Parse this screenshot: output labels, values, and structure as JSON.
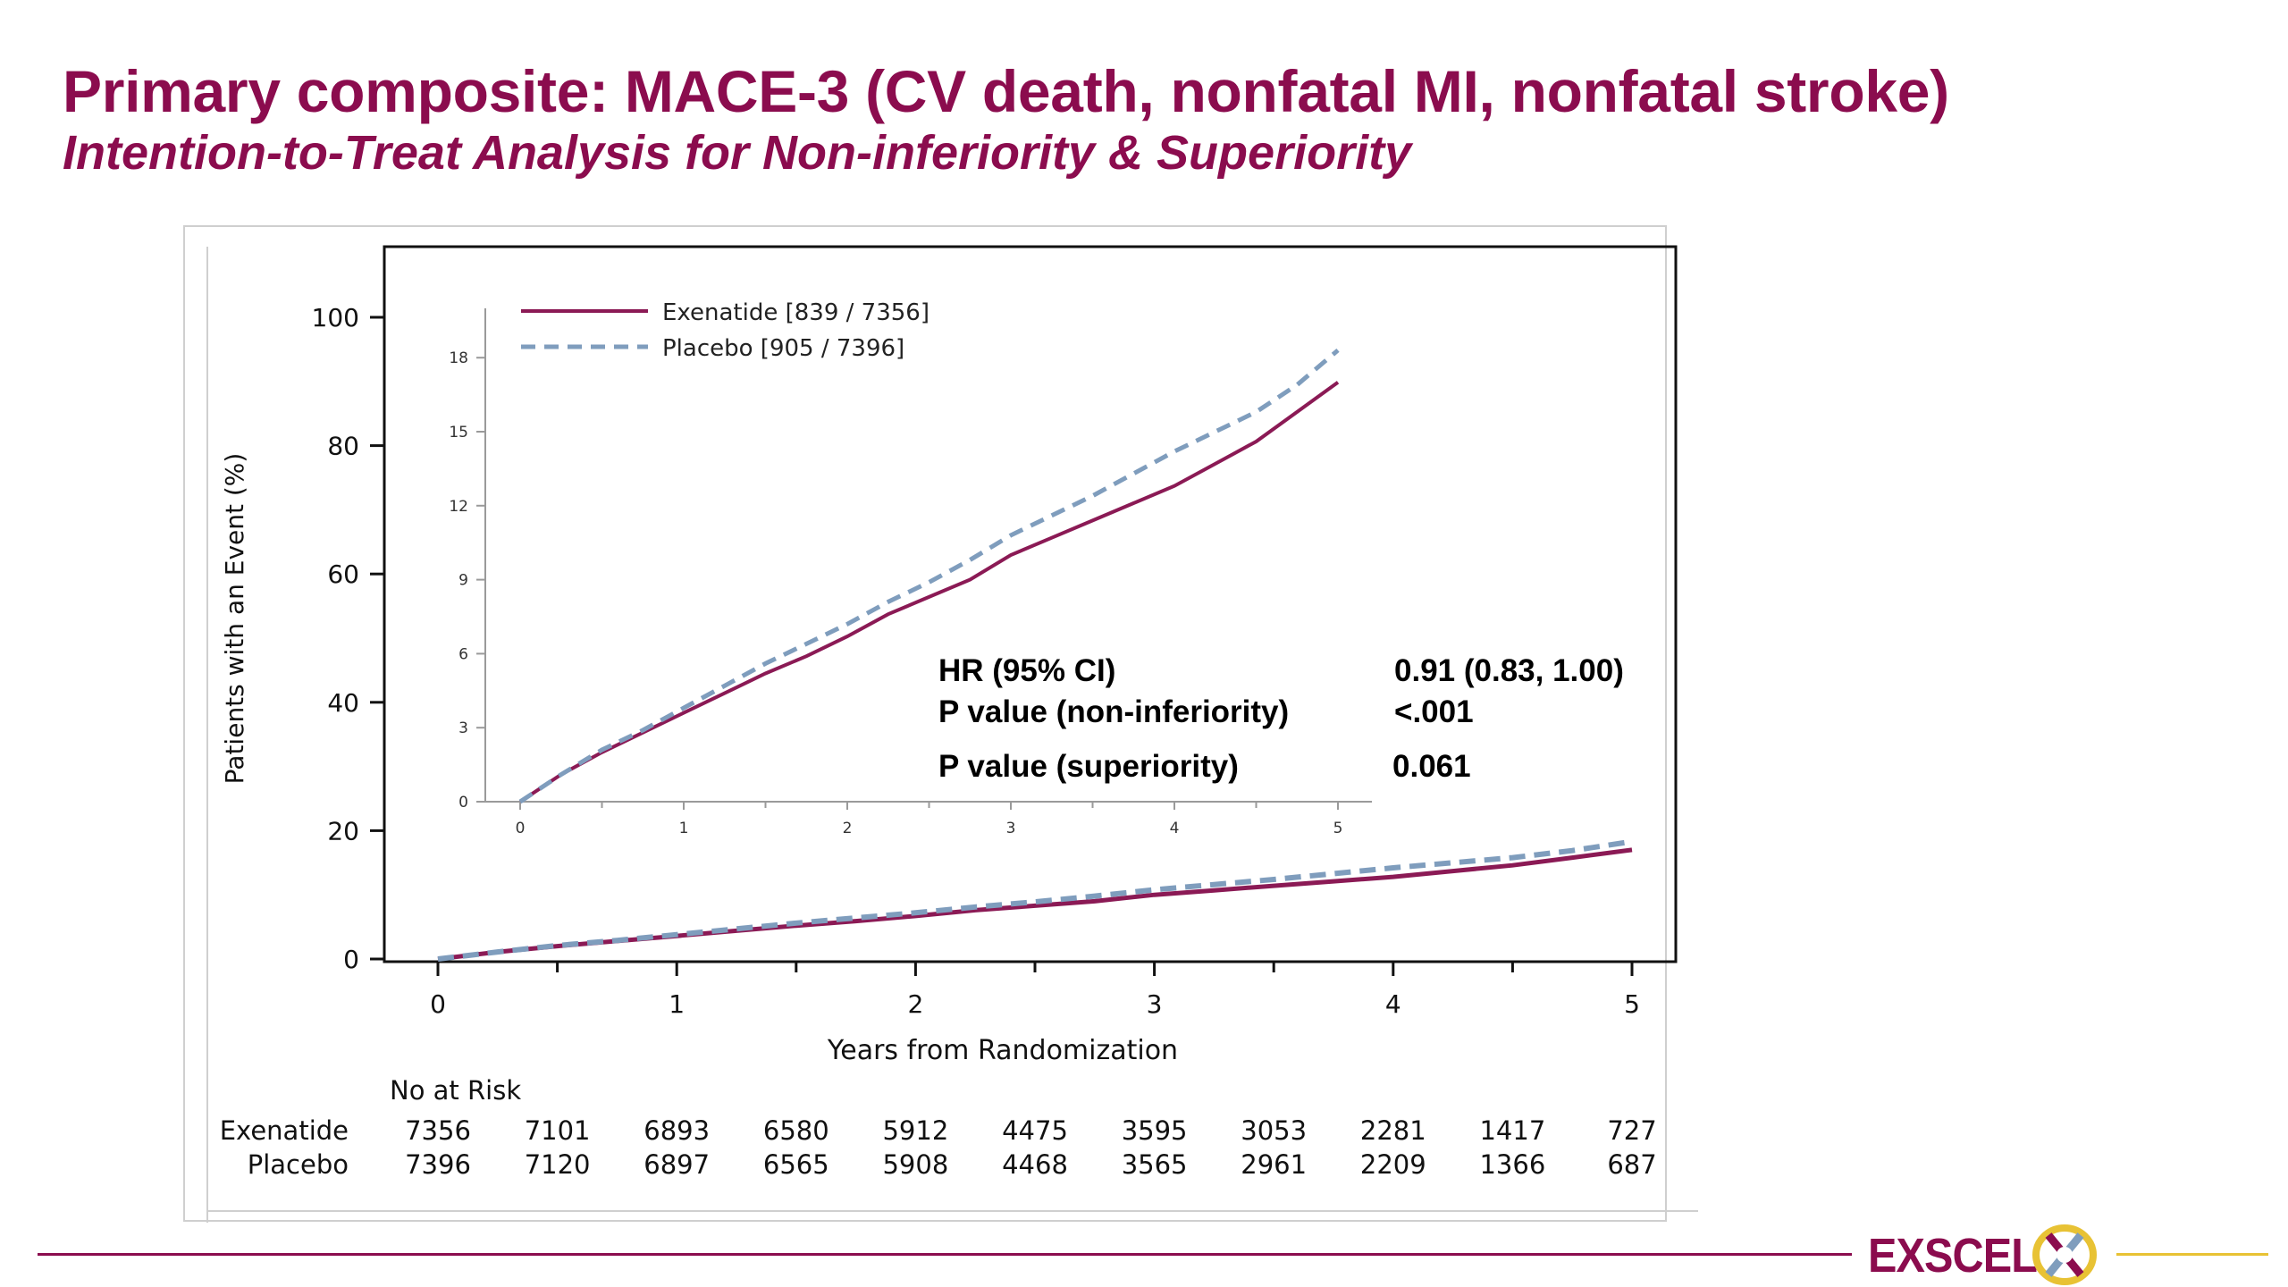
{
  "slide": {
    "title": "Primary composite: MACE-3 (CV death, nonfatal MI, nonfatal stroke)",
    "subtitle": "Intention-to-Treat Analysis for Non-inferiority & Superiority"
  },
  "chart_data": {
    "type": "line",
    "xlabel": "Years from Randomization",
    "ylabel": "Patients with an Event (%)",
    "xlim": [
      0,
      5
    ],
    "ylim": [
      0,
      100
    ],
    "x_ticks": [
      "0",
      "1",
      "2",
      "3",
      "4",
      "5"
    ],
    "y_ticks": [
      "0",
      "20",
      "40",
      "60",
      "80",
      "100"
    ],
    "grid": false,
    "legend_placement": "top-left (inset)",
    "series": [
      {
        "name": "Exenatide [839 / 7356]",
        "color": "#8b1a55",
        "style": "solid",
        "x": [
          0,
          0.25,
          0.5,
          0.75,
          1,
          1.25,
          1.5,
          1.75,
          2,
          2.25,
          2.5,
          2.75,
          3,
          3.25,
          3.5,
          3.75,
          4,
          4.25,
          4.5,
          4.75,
          5
        ],
        "y": [
          0,
          1.1,
          2.0,
          2.8,
          3.6,
          4.4,
          5.2,
          5.9,
          6.7,
          7.6,
          8.3,
          9.0,
          10.0,
          10.7,
          11.4,
          12.1,
          12.8,
          13.7,
          14.6,
          15.8,
          17.0
        ]
      },
      {
        "name": "Placebo [905 / 7396]",
        "color": "#7f9dbd",
        "style": "dashed",
        "x": [
          0,
          0.25,
          0.5,
          0.75,
          1,
          1.25,
          1.5,
          1.75,
          2,
          2.25,
          2.5,
          2.75,
          3,
          3.25,
          3.5,
          3.75,
          4,
          4.25,
          4.5,
          4.75,
          5
        ],
        "y": [
          0,
          1.1,
          2.1,
          2.9,
          3.8,
          4.7,
          5.6,
          6.4,
          7.2,
          8.1,
          8.9,
          9.8,
          10.8,
          11.6,
          12.4,
          13.3,
          14.2,
          15.0,
          15.8,
          16.9,
          18.3
        ]
      }
    ],
    "inset": {
      "xlim": [
        0,
        5
      ],
      "ylim": [
        0,
        20
      ],
      "x_ticks": [
        "0",
        "1",
        "2",
        "3",
        "4",
        "5"
      ],
      "y_ticks": [
        "0",
        "3",
        "6",
        "9",
        "12",
        "15",
        "18"
      ]
    },
    "stats": [
      {
        "label": "HR (95% CI)",
        "value": "0.91 (0.83, 1.00)"
      },
      {
        "label": "P value (non-inferiority)",
        "value": "<.001"
      },
      {
        "label": "P value (superiority)",
        "value": "0.061"
      }
    ],
    "risk_table": {
      "title": "No at Risk",
      "rows": [
        {
          "label": "Exenatide",
          "values": [
            "7356",
            "7101",
            "6893",
            "6580",
            "5912",
            "4475",
            "3595",
            "3053",
            "2281",
            "1417",
            "727"
          ]
        },
        {
          "label": "Placebo",
          "values": [
            "7396",
            "7120",
            "6897",
            "6565",
            "5908",
            "4468",
            "3565",
            "2961",
            "2209",
            "1366",
            "687"
          ]
        }
      ]
    }
  },
  "brand": {
    "name": "EXSCEL",
    "colors": [
      "#8b0c4e",
      "#e8c234",
      "#7f9dbd"
    ]
  }
}
